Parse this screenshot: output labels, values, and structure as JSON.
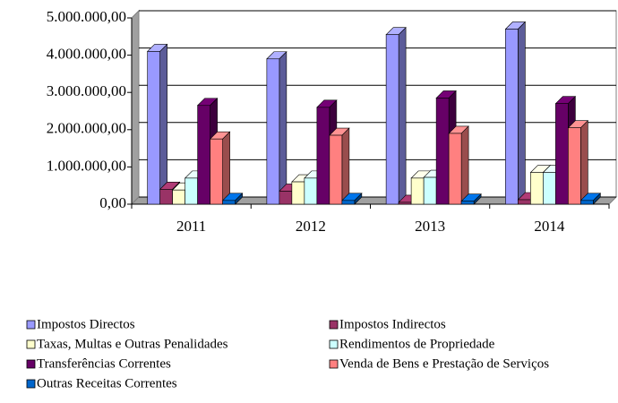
{
  "chart_data": {
    "type": "bar3d",
    "categories": [
      "2011",
      "2012",
      "2013",
      "2014"
    ],
    "series": [
      {
        "name": "Impostos Directos",
        "color": "#9999ff",
        "values": [
          4100000,
          3900000,
          4550000,
          4700000
        ]
      },
      {
        "name": "Impostos Indirectos",
        "color": "#993366",
        "values": [
          400000,
          350000,
          50000,
          120000
        ]
      },
      {
        "name": "Taxas, Multas e Outras Penalidades",
        "color": "#ffffcc",
        "values": [
          380000,
          600000,
          700000,
          850000
        ]
      },
      {
        "name": "Rendimentos de Propriedade",
        "color": "#ccffff",
        "values": [
          700000,
          700000,
          720000,
          850000
        ]
      },
      {
        "name": "Transferências Correntes",
        "color": "#660066",
        "values": [
          2650000,
          2600000,
          2850000,
          2700000
        ]
      },
      {
        "name": "Venda de Bens e Prestação de Serviços",
        "color": "#ff8080",
        "values": [
          1750000,
          1850000,
          1900000,
          2050000
        ]
      },
      {
        "name": "Outras Receitas Correntes",
        "color": "#0066cc",
        "values": [
          100000,
          100000,
          80000,
          100000
        ]
      }
    ],
    "ylim": [
      0,
      5000000
    ],
    "yticks": [
      {
        "value": 0,
        "label": "0,00"
      },
      {
        "value": 1000000,
        "label": "1.000.000,00"
      },
      {
        "value": 2000000,
        "label": "2.000.000,00"
      },
      {
        "value": 3000000,
        "label": "3.000.000,00"
      },
      {
        "value": 4000000,
        "label": "4.000.000,00"
      },
      {
        "value": 5000000,
        "label": "5.000.000,00"
      }
    ],
    "grid": true
  }
}
